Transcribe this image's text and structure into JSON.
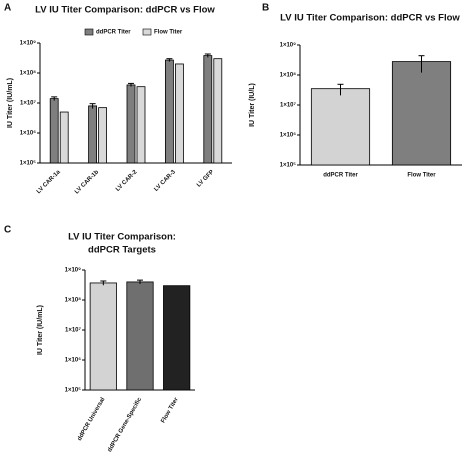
{
  "chart_data": [
    {
      "type": "bar",
      "panel": "A",
      "title": "LV IU Titer Comparison: ddPCR vs Flow",
      "y_label": "IU Titer (IU/mL)",
      "log": true,
      "categories": [
        "LV CAR-1a",
        "LV CAR-1b",
        "LV CAR-2",
        "LV CAR-3",
        "LV GFP"
      ],
      "series": [
        {
          "name": "ddPCR Titer",
          "color": "#7f7f7f",
          "values": [
            14000000,
            8000000,
            40000000,
            270000000,
            380000000
          ],
          "errors": [
            2000000,
            1500000,
            5000000,
            30000000,
            50000000
          ]
        },
        {
          "name": "Flow Titer",
          "color": "#d9d9d9",
          "values": [
            5000000,
            7000000,
            35000000,
            200000000,
            300000000
          ]
        }
      ],
      "ylim": [
        100000,
        1000000000
      ],
      "yticks": [
        {
          "value": 100000,
          "label": "1×10⁵"
        },
        {
          "value": 1000000,
          "label": "1×10⁶"
        },
        {
          "value": 10000000,
          "label": "1×10⁷"
        },
        {
          "value": 100000000,
          "label": "1×10⁸"
        },
        {
          "value": 1000000000,
          "label": "1×10⁹"
        }
      ],
      "legend": "top"
    },
    {
      "type": "bar",
      "panel": "B",
      "title": "LV IU Titer Comparison: ddPCR vs Flow",
      "y_label": "IU Titer (IU/L)",
      "log": true,
      "categories": [
        "ddPCR Titer",
        "Flow Titer"
      ],
      "values": [
        35000000,
        280000000
      ],
      "errors": [
        14000000,
        160000000
      ],
      "colors": [
        "#d3d3d3",
        "#7f7f7f"
      ],
      "ylim": [
        100000,
        1000000000
      ],
      "yticks": [
        {
          "value": 100000,
          "label": "1×10⁵"
        },
        {
          "value": 1000000,
          "label": "1×10⁶"
        },
        {
          "value": 10000000,
          "label": "1×10⁷"
        },
        {
          "value": 100000000,
          "label": "1×10⁸"
        },
        {
          "value": 1000000000,
          "label": "1×10⁹"
        }
      ]
    },
    {
      "type": "bar",
      "panel": "C",
      "title": [
        "LV IU Titer Comparison:",
        "ddPCR Targets"
      ],
      "y_label": "IU Titer (IU/mL)",
      "log": true,
      "categories": [
        "ddPCR Universal",
        "ddPCR Gene-Specific",
        "Flow Titer"
      ],
      "values": [
        370000000,
        400000000,
        300000000
      ],
      "errors": [
        60000000,
        60000000,
        null
      ],
      "colors": [
        "#d3d3d3",
        "#6f6f6f",
        "#222222"
      ],
      "ylim": [
        100000,
        1000000000
      ],
      "yticks": [
        {
          "value": 100000,
          "label": "1×10⁵"
        },
        {
          "value": 1000000,
          "label": "1×10⁶"
        },
        {
          "value": 10000000,
          "label": "1×10⁷"
        },
        {
          "value": 100000000,
          "label": "1×10⁸"
        },
        {
          "value": 1000000000,
          "label": "1×10⁹"
        }
      ]
    }
  ]
}
